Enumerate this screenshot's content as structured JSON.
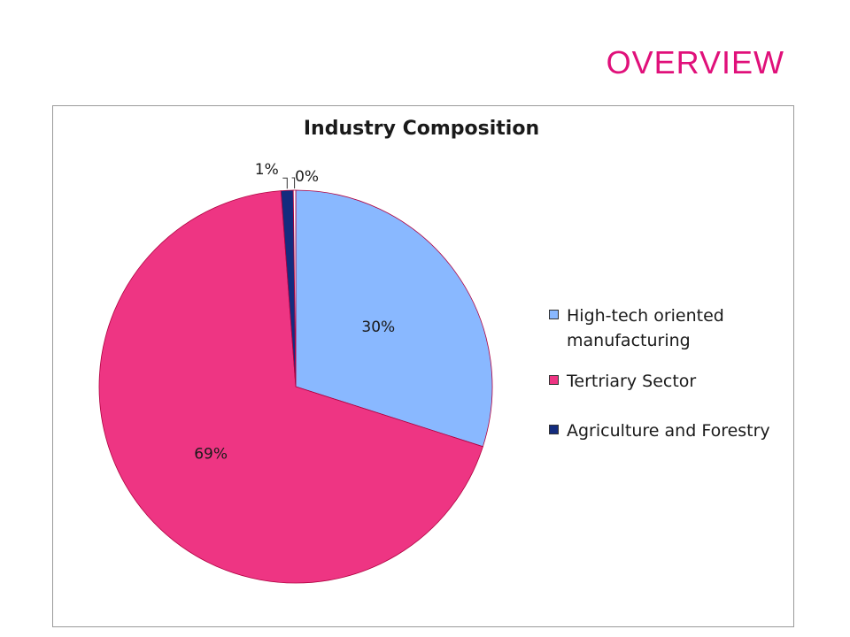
{
  "slide": {
    "title": "OVERVIEW"
  },
  "colors": {
    "title": "#e0107a",
    "high_tech": "#89b8ff",
    "tertiary": "#ee3583",
    "agriculture": "#142c7e",
    "pie_border": "#b00040"
  },
  "chart_data": {
    "type": "pie",
    "title": "Industry Composition",
    "categories": [
      "High-tech oriented manufacturing",
      "Tertriary Sector",
      "Agriculture and Forestry",
      ""
    ],
    "values": [
      30,
      69,
      1,
      0.2
    ],
    "labels": [
      "30%",
      "69%",
      "1%",
      "0%"
    ],
    "colors": [
      "#89b8ff",
      "#ee3583",
      "#142c7e",
      "#ffffff"
    ],
    "start_angle_deg": 0,
    "direction": "clockwise",
    "legend_position": "right"
  },
  "legend": {
    "items": [
      {
        "label": "High-tech oriented manufacturing",
        "color": "#89b8ff"
      },
      {
        "label": "Tertriary Sector",
        "color": "#ee3583"
      },
      {
        "label": "Agriculture and Forestry",
        "color": "#142c7e"
      }
    ]
  }
}
